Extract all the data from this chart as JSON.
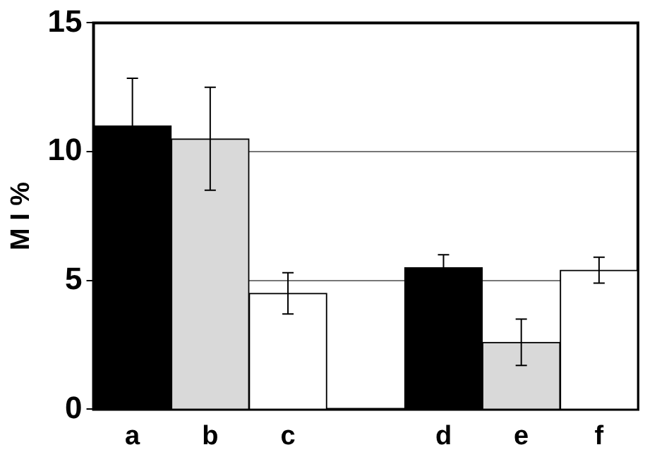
{
  "chart_data": {
    "type": "bar",
    "ylabel": "M I %",
    "categories": [
      "a",
      "b",
      "c",
      null,
      "d",
      "e",
      "f"
    ],
    "values": [
      11.0,
      10.5,
      4.5,
      null,
      5.5,
      2.6,
      5.4
    ],
    "errors": [
      1.85,
      2.0,
      0.8,
      null,
      0.5,
      0.9,
      0.5
    ],
    "colors": [
      "#000000",
      "#d9d9d9",
      "#ffffff",
      null,
      "#000000",
      "#d9d9d9",
      "#ffffff"
    ],
    "ylim": [
      0,
      15
    ],
    "yticks": [
      0,
      5,
      10,
      15
    ],
    "grid": "y",
    "legend": false
  }
}
